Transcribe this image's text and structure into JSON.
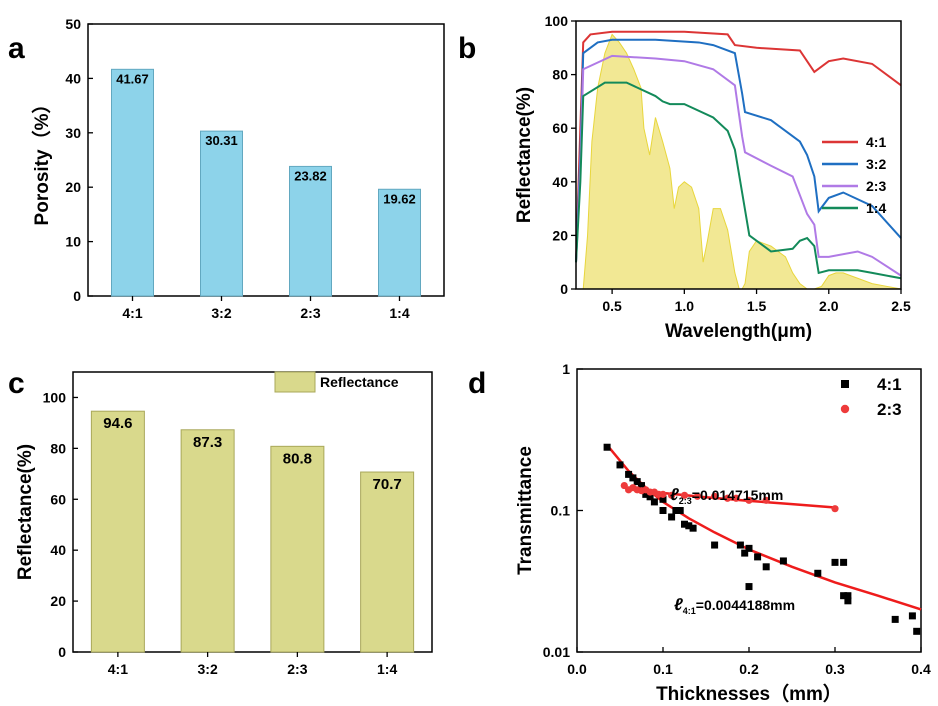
{
  "panels": [
    {
      "label": "a"
    },
    {
      "label": "b"
    },
    {
      "label": "c"
    },
    {
      "label": "d"
    }
  ],
  "chart_data": [
    {
      "type": "bar",
      "panel": "a",
      "categories": [
        "4:1",
        "3:2",
        "2:3",
        "1:4"
      ],
      "values": [
        41.67,
        30.31,
        23.82,
        19.62
      ],
      "data_labels": [
        "41.67",
        "30.31",
        "23.82",
        "19.62"
      ],
      "ylabel": "Porosity（%）",
      "ylim": [
        0,
        50
      ],
      "yticks": [
        0,
        10,
        20,
        30,
        40,
        50
      ],
      "bar_color": "#8dd3ea"
    },
    {
      "type": "line",
      "panel": "b",
      "xlabel": "Wavelength(μm)",
      "ylabel": "Reflectance(%)",
      "xlim": [
        0.25,
        2.5
      ],
      "ylim": [
        0,
        100
      ],
      "xticks": [
        "0.5",
        "1.0",
        "1.5",
        "2.0",
        "2.5"
      ],
      "yticks": [
        0,
        20,
        40,
        60,
        80,
        100
      ],
      "legend_position": "right",
      "series": [
        {
          "name": "4:1",
          "color": "#dc3535",
          "x": [
            0.25,
            0.28,
            0.3,
            0.35,
            0.5,
            1.0,
            1.3,
            1.35,
            1.5,
            1.8,
            1.9,
            2.0,
            2.1,
            2.3,
            2.5
          ],
          "y": [
            10,
            60,
            92,
            95,
            96,
            96,
            95,
            91,
            90,
            89,
            81,
            85,
            86,
            84,
            76
          ]
        },
        {
          "name": "3:2",
          "color": "#1f6fc2",
          "x": [
            0.25,
            0.28,
            0.3,
            0.4,
            0.5,
            0.8,
            1.1,
            1.2,
            1.35,
            1.4,
            1.42,
            1.6,
            1.65,
            1.8,
            1.85,
            1.9,
            1.93,
            2.0,
            2.1,
            2.3,
            2.5
          ],
          "y": [
            10,
            50,
            88,
            92,
            93,
            93,
            92,
            91,
            88,
            73,
            66,
            63,
            61,
            55,
            50,
            42,
            29,
            34,
            36,
            31,
            19
          ]
        },
        {
          "name": "2:3",
          "color": "#b07ae6",
          "x": [
            0.25,
            0.28,
            0.3,
            0.5,
            0.8,
            1.0,
            1.2,
            1.35,
            1.4,
            1.42,
            1.6,
            1.75,
            1.8,
            1.85,
            1.9,
            1.93,
            2.0,
            2.2,
            2.3,
            2.5
          ],
          "y": [
            10,
            45,
            82,
            87,
            86,
            85,
            82,
            76,
            57,
            51,
            46,
            42,
            35,
            28,
            24,
            12,
            12,
            14,
            12,
            5
          ]
        },
        {
          "name": "1:4",
          "color": "#138a5a",
          "x": [
            0.25,
            0.28,
            0.3,
            0.45,
            0.6,
            0.8,
            0.85,
            0.9,
            1.0,
            1.2,
            1.3,
            1.35,
            1.4,
            1.45,
            1.6,
            1.75,
            1.8,
            1.85,
            1.9,
            1.93,
            2.0,
            2.2,
            2.3,
            2.5
          ],
          "y": [
            10,
            40,
            72,
            77,
            77,
            72,
            70,
            69,
            69,
            64,
            59,
            52,
            36,
            20,
            14,
            15,
            18,
            19,
            16,
            6,
            7,
            7,
            6,
            4
          ]
        }
      ],
      "background_spectrum": {
        "color": "#e8d63c",
        "x": [
          0.3,
          0.33,
          0.36,
          0.4,
          0.45,
          0.5,
          0.55,
          0.6,
          0.65,
          0.7,
          0.72,
          0.76,
          0.8,
          0.85,
          0.9,
          0.93,
          0.96,
          1.0,
          1.05,
          1.1,
          1.13,
          1.16,
          1.2,
          1.25,
          1.3,
          1.35,
          1.38,
          1.4,
          1.42,
          1.45,
          1.5,
          1.55,
          1.6,
          1.65,
          1.7,
          1.75,
          1.8,
          1.85,
          1.9,
          1.95,
          2.0,
          2.05,
          2.1,
          2.15,
          2.2,
          2.3,
          2.4,
          2.5
        ],
        "y": [
          0,
          20,
          55,
          75,
          88,
          95,
          92,
          88,
          82,
          75,
          60,
          50,
          64,
          55,
          45,
          30,
          38,
          40,
          38,
          30,
          10,
          18,
          30,
          30,
          22,
          6,
          0,
          0,
          2,
          14,
          18,
          17,
          16,
          14,
          12,
          6,
          2,
          0,
          0,
          1,
          5,
          6,
          6,
          5,
          4,
          2,
          1,
          0
        ]
      }
    },
    {
      "type": "bar",
      "panel": "c",
      "categories": [
        "4:1",
        "3:2",
        "2:3",
        "1:4"
      ],
      "values": [
        94.6,
        87.3,
        80.8,
        70.7
      ],
      "data_labels": [
        "94.6",
        "87.3",
        "80.8",
        "70.7"
      ],
      "ylabel": "Reflectance(%)",
      "ylim": [
        0,
        110
      ],
      "yticks": [
        0,
        20,
        40,
        60,
        80,
        100
      ],
      "legend": "Reflectance",
      "legend_position": "top-right",
      "bar_color": "#d9d98c"
    },
    {
      "type": "scatter",
      "panel": "d",
      "xlabel": "Thicknesses（mm）",
      "ylabel": "Transmittance",
      "xlim": [
        0.0,
        0.4
      ],
      "ylim": [
        0.01,
        1
      ],
      "yscale": "log",
      "xticks": [
        "0.0",
        "0.1",
        "0.2",
        "0.3",
        "0.4"
      ],
      "yticks": [
        "0.01",
        "0.1",
        "1"
      ],
      "legend_position": "top-right",
      "series": [
        {
          "name": "4:1",
          "marker": "square",
          "color": "#000000",
          "x": [
            0.035,
            0.05,
            0.06,
            0.065,
            0.07,
            0.075,
            0.08,
            0.085,
            0.09,
            0.1,
            0.1,
            0.11,
            0.115,
            0.12,
            0.125,
            0.13,
            0.135,
            0.16,
            0.19,
            0.195,
            0.2,
            0.2,
            0.21,
            0.22,
            0.24,
            0.28,
            0.3,
            0.31,
            0.31,
            0.315,
            0.315,
            0.37,
            0.39,
            0.395
          ],
          "y": [
            0.28,
            0.21,
            0.18,
            0.17,
            0.16,
            0.15,
            0.13,
            0.125,
            0.115,
            0.12,
            0.1,
            0.09,
            0.1,
            0.1,
            0.08,
            0.078,
            0.075,
            0.057,
            0.057,
            0.05,
            0.054,
            0.029,
            0.047,
            0.04,
            0.044,
            0.036,
            0.043,
            0.043,
            0.025,
            0.023,
            0.025,
            0.017,
            0.018,
            0.014
          ]
        },
        {
          "name": "2:3",
          "marker": "circle",
          "color": "#ee3b3b",
          "x": [
            0.055,
            0.06,
            0.065,
            0.07,
            0.075,
            0.08,
            0.085,
            0.09,
            0.095,
            0.1,
            0.11,
            0.125,
            0.14,
            0.16,
            0.175,
            0.185,
            0.2,
            0.22,
            0.3
          ],
          "y": [
            0.15,
            0.14,
            0.145,
            0.14,
            0.138,
            0.14,
            0.135,
            0.135,
            0.13,
            0.13,
            0.128,
            0.128,
            0.126,
            0.126,
            0.122,
            0.122,
            0.118,
            0.118,
            0.103
          ]
        }
      ],
      "fits": [
        {
          "series": "4:1",
          "label": "ℓ4:1=0.0044188mm",
          "color": "#ee1c1c",
          "x": [
            0.035,
            0.06,
            0.08,
            0.1,
            0.13,
            0.16,
            0.2,
            0.25,
            0.3,
            0.35,
            0.4
          ],
          "y": [
            0.29,
            0.19,
            0.145,
            0.115,
            0.088,
            0.07,
            0.053,
            0.04,
            0.031,
            0.025,
            0.02
          ]
        },
        {
          "series": "2:3",
          "label": "ℓ2:3=0.014715mm",
          "color": "#ee1c1c",
          "x": [
            0.055,
            0.08,
            0.1,
            0.15,
            0.2,
            0.25,
            0.3
          ],
          "y": [
            0.145,
            0.138,
            0.133,
            0.124,
            0.117,
            0.111,
            0.105
          ]
        }
      ],
      "annotations": [
        {
          "symbol": "ℓ",
          "sub": "2:3",
          "text": "=0.014715mm"
        },
        {
          "symbol": "ℓ",
          "sub": "4:1",
          "text": "=0.0044188mm"
        }
      ]
    }
  ]
}
